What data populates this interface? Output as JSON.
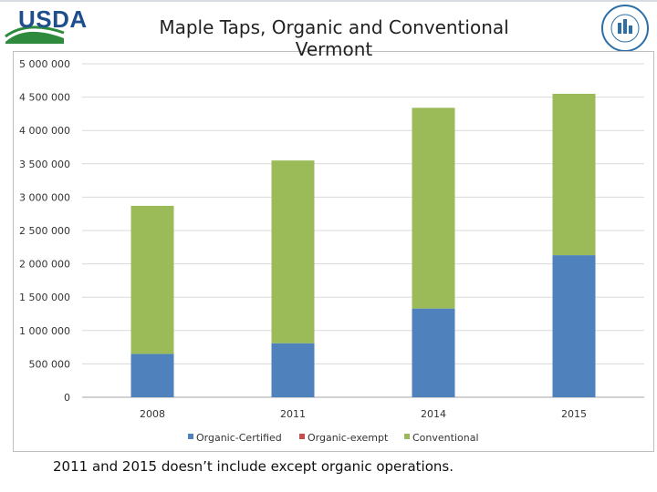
{
  "header": {
    "logo_text": "USDA",
    "seal_text": "AGRICULTURE COUNTS"
  },
  "chart_data": {
    "type": "bar",
    "stacked": true,
    "title": "Maple Taps, Organic and Conventional Vermont",
    "categories": [
      "2008",
      "2011",
      "2014",
      "2015"
    ],
    "series": [
      {
        "name": "Organic-Certified",
        "color": "#4f81bd",
        "values": [
          650000,
          810000,
          1330000,
          2130000
        ]
      },
      {
        "name": "Organic-exempt",
        "color": "#c0504d",
        "values": [
          0,
          0,
          0,
          0
        ]
      },
      {
        "name": "Conventional",
        "color": "#9bbb59",
        "values": [
          2220000,
          2740000,
          3010000,
          2420000
        ]
      }
    ],
    "ylim": [
      0,
      5000000
    ],
    "yticks": [
      "0",
      "500 000",
      "1 000 000",
      "1 500 000",
      "2 000 000",
      "2 500 000",
      "3 000 000",
      "3 500 000",
      "4 000 000",
      "4 500 000",
      "5 000 000"
    ],
    "grid": true,
    "legend_position": "bottom"
  },
  "footnote": "2011 and 2015 doesn’t include except organic operations."
}
